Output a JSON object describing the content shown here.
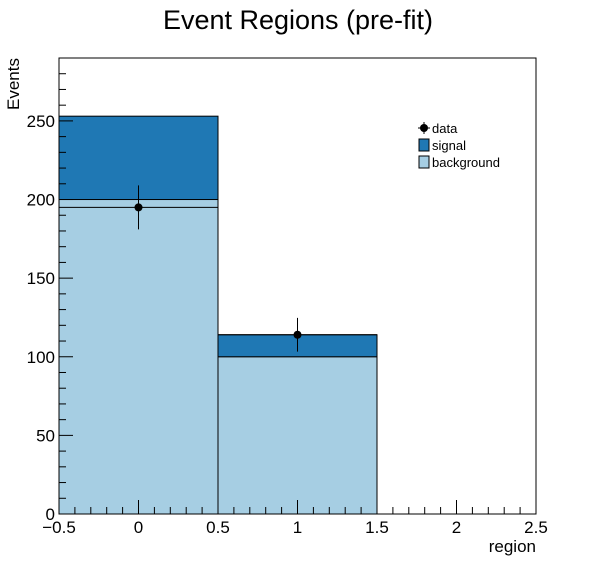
{
  "chart_data": {
    "type": "bar",
    "title": "Event Regions (pre-fit)",
    "xlabel": "region",
    "ylabel": "Events",
    "xlim": [
      -0.5,
      2.5
    ],
    "ylim": [
      0,
      290
    ],
    "x_ticks": [
      -0.5,
      0,
      0.5,
      1,
      1.5,
      2,
      2.5
    ],
    "x_tick_labels": [
      "−0.5",
      "0",
      "0.5",
      "1",
      "1.5",
      "2",
      "2.5"
    ],
    "y_ticks": [
      0,
      50,
      100,
      150,
      200,
      250
    ],
    "y_tick_labels": [
      "0",
      "50",
      "100",
      "150",
      "200",
      "250"
    ],
    "bins": [
      {
        "low": -0.5,
        "high": 0.5
      },
      {
        "low": 0.5,
        "high": 1.5
      },
      {
        "low": 1.5,
        "high": 2.5
      }
    ],
    "series": [
      {
        "name": "background",
        "kind": "stacked-hist",
        "color": "#a6cee3",
        "values": [
          200,
          100,
          0
        ]
      },
      {
        "name": "signal",
        "kind": "stacked-hist",
        "color": "#1f78b4",
        "values": [
          53,
          14,
          0
        ]
      },
      {
        "name": "data",
        "kind": "points",
        "color": "#000000",
        "x": [
          0,
          1
        ],
        "y": [
          195,
          114
        ],
        "yerr": [
          14,
          10.7
        ]
      }
    ],
    "legend": {
      "placement": "top-right",
      "entries": [
        {
          "label": "data",
          "marker": "point"
        },
        {
          "label": "signal",
          "marker": "box",
          "color": "#1f78b4"
        },
        {
          "label": "background",
          "marker": "box",
          "color": "#a6cee3"
        }
      ]
    },
    "grid": false
  }
}
